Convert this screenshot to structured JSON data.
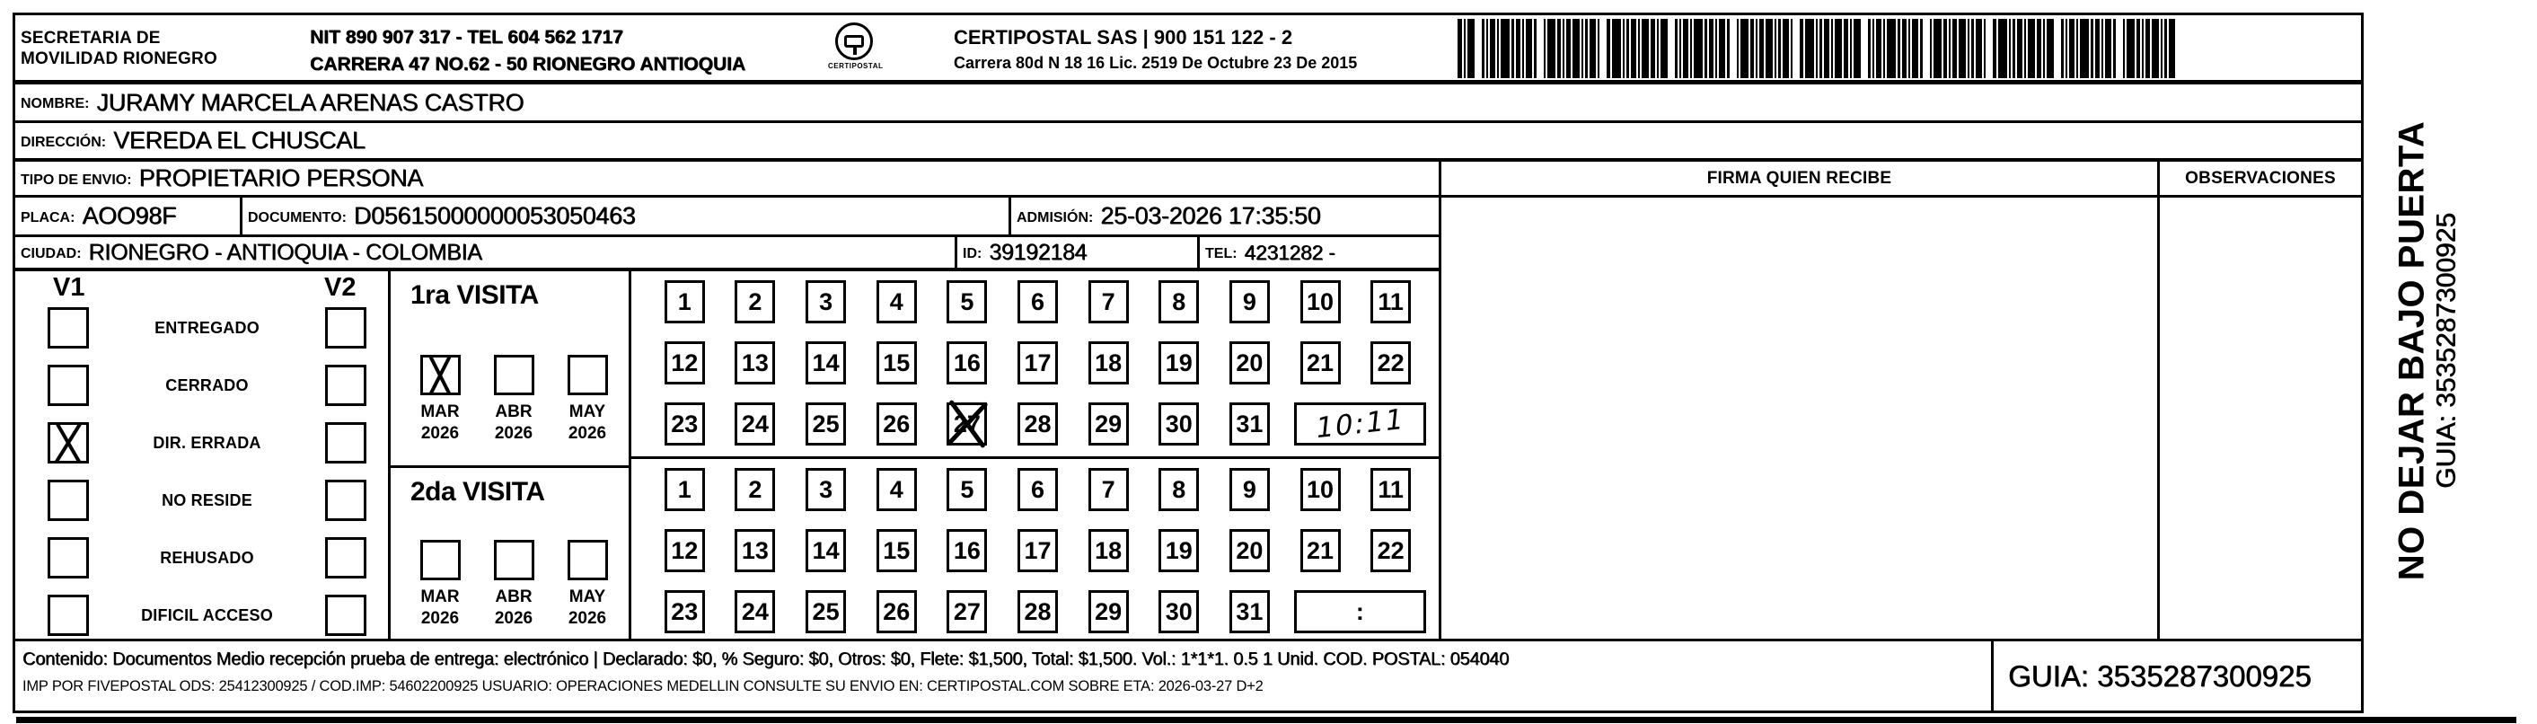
{
  "header": {
    "sender": [
      "SECRETARIA  DE",
      "MOVILIDAD RIONEGRO"
    ],
    "office_lines": [
      "NIT 890 907 317 - TEL 604 562 1717",
      "CARRERA 47 NO.62 - 50 RIONEGRO ANTIOQUIA"
    ],
    "carrier_lines": [
      "CERTIPOSTAL SAS | 900 151 122 - 2",
      "Carrera 80d N 18 16  Lic. 2519 De Octubre 23 De 2015"
    ],
    "logo_caption": "CERTIPOSTAL"
  },
  "fields": {
    "nombre": {
      "label": "NOMBRE:",
      "value": "JURAMY MARCELA ARENAS CASTRO"
    },
    "direccion": {
      "label": "DIRECCIÓN:",
      "value": "VEREDA EL CHUSCAL"
    },
    "tipo_envio": {
      "label": "TIPO DE ENVIO:",
      "value": "PROPIETARIO PERSONA"
    },
    "placa": {
      "label": "PLACA:",
      "value": "AOO98F"
    },
    "documento": {
      "label": "DOCUMENTO:",
      "value": "D05615000000053050463"
    },
    "admision": {
      "label": "ADMISIÓN:",
      "value": "25-03-2026 17:35:50"
    },
    "ciudad": {
      "label": "CIUDAD:",
      "value": "RIONEGRO - ANTIOQUIA - COLOMBIA"
    },
    "id": {
      "label": "ID:",
      "value": "39192184"
    },
    "tel": {
      "label": "TEL:",
      "value": "4231282 -"
    }
  },
  "signature": {
    "firma_header": "FIRMA QUIEN RECIBE",
    "observaciones_header": "OBSERVACIONES"
  },
  "status": {
    "col1_header": "V1",
    "col2_header": "V2",
    "items": [
      {
        "label": "ENTREGADO",
        "v1": false,
        "v2": false
      },
      {
        "label": "CERRADO",
        "v1": false,
        "v2": false
      },
      {
        "label": "DIR. ERRADA",
        "v1": true,
        "v2": false
      },
      {
        "label": "NO RESIDE",
        "v1": false,
        "v2": false
      },
      {
        "label": "REHUSADO",
        "v1": false,
        "v2": false
      },
      {
        "label": "DIFICIL ACCESO",
        "v1": false,
        "v2": false
      }
    ]
  },
  "visits": [
    {
      "title": "1ra VISITA",
      "months": [
        {
          "month": "MAR",
          "year": "2026",
          "checked": true
        },
        {
          "month": "ABR",
          "year": "2026",
          "checked": false
        },
        {
          "month": "MAY",
          "year": "2026",
          "checked": false
        }
      ],
      "days": [
        "1",
        "2",
        "3",
        "4",
        "5",
        "6",
        "7",
        "8",
        "9",
        "10",
        "11",
        "12",
        "13",
        "14",
        "15",
        "16",
        "17",
        "18",
        "19",
        "20",
        "21",
        "22",
        "23",
        "24",
        "25",
        "26",
        "27",
        "28",
        "29",
        "30",
        "31"
      ],
      "crossed_day": "27",
      "time": "10:11",
      "time_handwritten": true
    },
    {
      "title": "2da VISITA",
      "months": [
        {
          "month": "MAR",
          "year": "2026",
          "checked": false
        },
        {
          "month": "ABR",
          "year": "2026",
          "checked": false
        },
        {
          "month": "MAY",
          "year": "2026",
          "checked": false
        }
      ],
      "days": [
        "1",
        "2",
        "3",
        "4",
        "5",
        "6",
        "7",
        "8",
        "9",
        "10",
        "11",
        "12",
        "13",
        "14",
        "15",
        "16",
        "17",
        "18",
        "19",
        "20",
        "21",
        "22",
        "23",
        "24",
        "25",
        "26",
        "27",
        "28",
        "29",
        "30",
        "31"
      ],
      "crossed_day": null,
      "time": ":",
      "time_handwritten": false
    }
  ],
  "footer": {
    "line1": "Contenido: Documentos Medio recepción prueba de entrega: electrónico | Declarado: $0, % Seguro: $0, Otros: $0, Flete: $1,500, Total: $1,500. Vol.: 1*1*1. 0.5  1 Unid. COD. POSTAL: 054040",
    "line2": "IMP POR FIVEPOSTAL ODS: 25412300925 / COD.IMP: 54602200925 USUARIO: OPERACIONES MEDELLIN CONSULTE SU ENVIO EN: CERTIPOSTAL.COM SOBRE ETA: 2026-03-27 D+2",
    "guia": "GUIA: 3535287300925"
  },
  "side_strip": {
    "warning": "NO DEJAR BAJO PUERTA",
    "guia": "GUIA: 3535287300925"
  }
}
